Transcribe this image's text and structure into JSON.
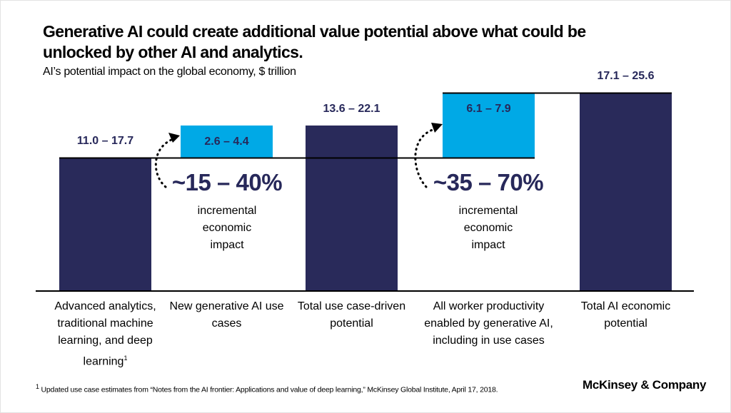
{
  "title": "Generative AI could create additional value potential above what could be unlocked by other AI and analytics.",
  "subtitle": "AI’s potential impact on the global economy, $ trillion",
  "chart_data": {
    "type": "waterfall",
    "unit": "$ trillion",
    "categories": [
      "Advanced analytics, traditional machine learning, and deep learning",
      "New generative AI use cases",
      "Total use case-driven potential",
      "All worker productivity enabled by generative AI, including in use cases",
      "Total AI economic potential"
    ],
    "footnote_marks": [
      "1",
      "",
      "",
      "",
      ""
    ],
    "bars": [
      {
        "kind": "total",
        "low": 11.0,
        "high": 17.7,
        "label": "11.0 – 17.7",
        "base_from": null
      },
      {
        "kind": "increment",
        "low": 2.6,
        "high": 4.4,
        "label": "2.6 – 4.4",
        "base_from": 0
      },
      {
        "kind": "total",
        "low": 13.6,
        "high": 22.1,
        "label": "13.6 – 22.1",
        "base_from": null
      },
      {
        "kind": "increment",
        "low": 6.1,
        "high": 7.9,
        "label": "6.1 – 7.9",
        "base_from": 0
      },
      {
        "kind": "total",
        "low": 17.1,
        "high": 25.6,
        "label": "17.1 – 25.6",
        "base_from": null
      }
    ],
    "annotations": [
      {
        "value": "~15 – 40%",
        "text_lines": [
          "incremental",
          "economic",
          "impact"
        ]
      },
      {
        "value": "~35 – 70%",
        "text_lines": [
          "incremental",
          "economic",
          "impact"
        ]
      }
    ],
    "colors": {
      "total": "#292a5a",
      "increment": "#00a9e6",
      "label": "#27285a"
    }
  },
  "footnote": {
    "mark": "1",
    "text": "Updated use case estimates from “Notes from the AI frontier: Applications and value of deep learning,” McKinsey Global Institute, April 17, 2018."
  },
  "brand": "McKinsey & Company"
}
